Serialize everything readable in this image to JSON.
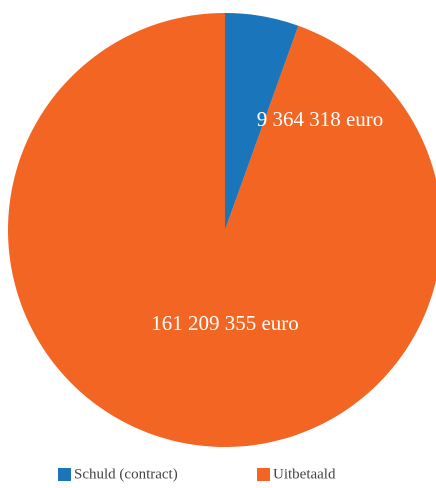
{
  "chart_data": {
    "type": "pie",
    "categories": [
      "Schuld (contract)",
      "Uitbetaald"
    ],
    "values": [
      9364318,
      161209355
    ],
    "value_labels": [
      "9 364 318 euro",
      "161 209 355 euro"
    ],
    "colors": [
      "#1b75bb",
      "#f26522"
    ],
    "legend": "bottom"
  }
}
